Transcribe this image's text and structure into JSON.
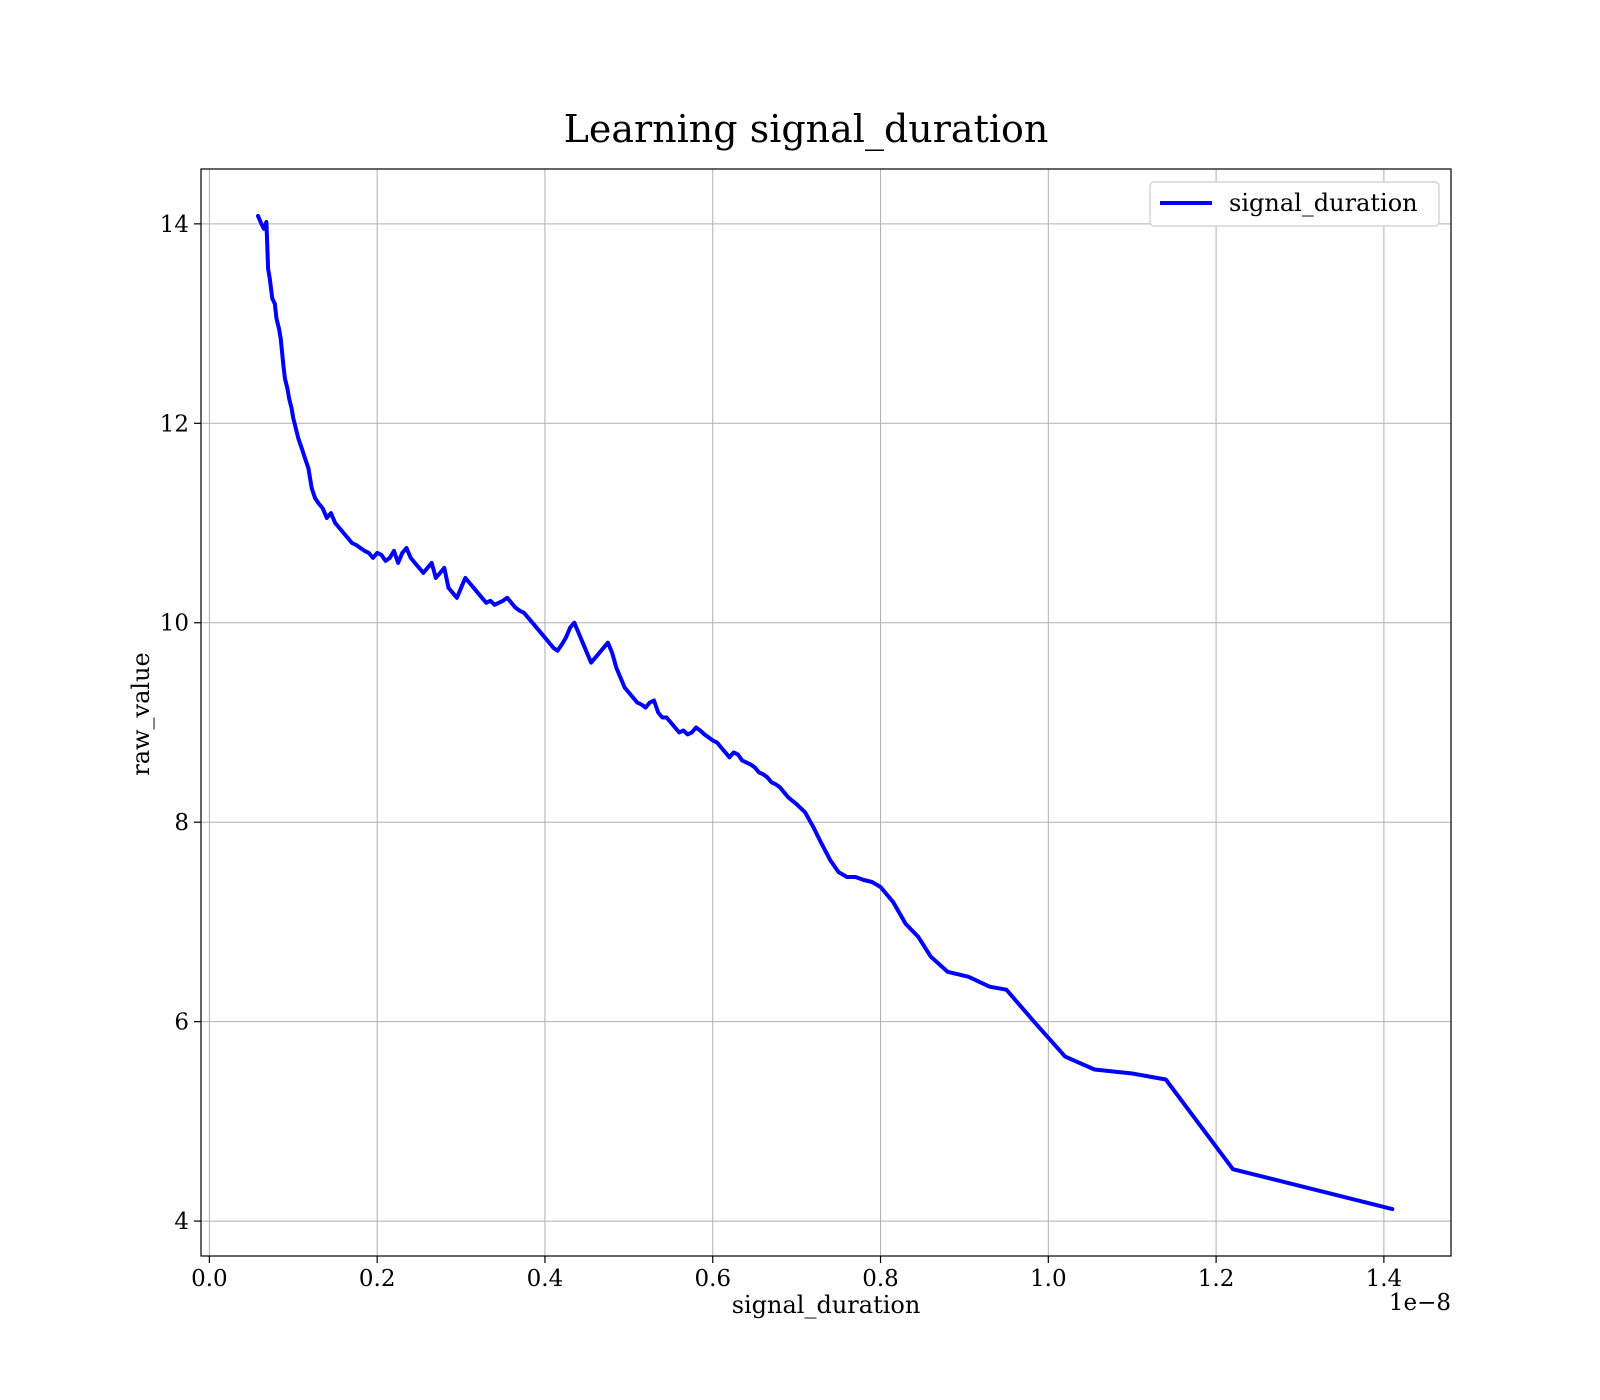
{
  "chart_data": {
    "type": "line",
    "title": "Learning signal_duration",
    "xlabel": "signal_duration",
    "ylabel": "raw_value",
    "x_offset_label": "1e−8",
    "xlim": [
      -0.01,
      1.48
    ],
    "ylim": [
      3.65,
      14.55
    ],
    "x_ticks": [
      0.0,
      0.2,
      0.4,
      0.6,
      0.8,
      1.0,
      1.2,
      1.4
    ],
    "x_tick_labels": [
      "0.0",
      "0.2",
      "0.4",
      "0.6",
      "0.8",
      "1.0",
      "1.2",
      "1.4"
    ],
    "y_ticks": [
      4,
      6,
      8,
      10,
      12,
      14
    ],
    "y_tick_labels": [
      "4",
      "6",
      "8",
      "10",
      "12",
      "14"
    ],
    "grid": true,
    "legend": {
      "position": "top-right",
      "entries": [
        "signal_duration"
      ]
    },
    "series": [
      {
        "name": "signal_duration",
        "color": "#0000ff",
        "x": [
          0.058,
          0.062,
          0.065,
          0.068,
          0.07,
          0.072,
          0.075,
          0.078,
          0.08,
          0.083,
          0.085,
          0.088,
          0.09,
          0.093,
          0.095,
          0.098,
          0.1,
          0.103,
          0.106,
          0.11,
          0.114,
          0.118,
          0.122,
          0.126,
          0.13,
          0.135,
          0.14,
          0.145,
          0.15,
          0.155,
          0.16,
          0.165,
          0.17,
          0.175,
          0.18,
          0.185,
          0.19,
          0.195,
          0.2,
          0.205,
          0.21,
          0.215,
          0.22,
          0.225,
          0.23,
          0.235,
          0.24,
          0.245,
          0.25,
          0.255,
          0.26,
          0.265,
          0.27,
          0.275,
          0.28,
          0.285,
          0.29,
          0.295,
          0.3,
          0.305,
          0.31,
          0.315,
          0.32,
          0.325,
          0.33,
          0.335,
          0.34,
          0.345,
          0.35,
          0.355,
          0.36,
          0.365,
          0.37,
          0.375,
          0.38,
          0.385,
          0.39,
          0.395,
          0.4,
          0.405,
          0.41,
          0.415,
          0.42,
          0.425,
          0.43,
          0.435,
          0.44,
          0.445,
          0.45,
          0.455,
          0.46,
          0.465,
          0.47,
          0.475,
          0.48,
          0.485,
          0.49,
          0.495,
          0.5,
          0.505,
          0.51,
          0.515,
          0.52,
          0.525,
          0.53,
          0.535,
          0.54,
          0.545,
          0.55,
          0.555,
          0.56,
          0.565,
          0.57,
          0.575,
          0.58,
          0.585,
          0.59,
          0.595,
          0.6,
          0.605,
          0.61,
          0.615,
          0.62,
          0.625,
          0.63,
          0.635,
          0.64,
          0.645,
          0.65,
          0.655,
          0.66,
          0.665,
          0.67,
          0.675,
          0.68,
          0.69,
          0.7,
          0.71,
          0.72,
          0.73,
          0.74,
          0.75,
          0.76,
          0.77,
          0.78,
          0.79,
          0.8,
          0.815,
          0.83,
          0.845,
          0.86,
          0.88,
          0.905,
          0.93,
          0.95,
          0.985,
          1.02,
          1.055,
          1.1,
          1.14,
          1.22,
          1.41
        ],
        "y": [
          14.08,
          14.0,
          13.95,
          14.02,
          13.55,
          13.45,
          13.25,
          13.2,
          13.05,
          12.95,
          12.85,
          12.6,
          12.45,
          12.35,
          12.25,
          12.15,
          12.05,
          11.95,
          11.85,
          11.75,
          11.65,
          11.55,
          11.35,
          11.25,
          11.2,
          11.15,
          11.05,
          11.1,
          11.0,
          10.95,
          10.9,
          10.85,
          10.8,
          10.78,
          10.75,
          10.72,
          10.7,
          10.65,
          10.7,
          10.68,
          10.62,
          10.65,
          10.72,
          10.6,
          10.7,
          10.75,
          10.65,
          10.6,
          10.55,
          10.5,
          10.55,
          10.6,
          10.45,
          10.5,
          10.55,
          10.35,
          10.3,
          10.25,
          10.35,
          10.45,
          10.4,
          10.35,
          10.3,
          10.25,
          10.2,
          10.22,
          10.18,
          10.2,
          10.22,
          10.25,
          10.2,
          10.15,
          10.12,
          10.1,
          10.05,
          10.0,
          9.95,
          9.9,
          9.85,
          9.8,
          9.75,
          9.72,
          9.78,
          9.85,
          9.95,
          10.0,
          9.9,
          9.8,
          9.7,
          9.6,
          9.65,
          9.7,
          9.75,
          9.8,
          9.7,
          9.55,
          9.45,
          9.35,
          9.3,
          9.25,
          9.2,
          9.18,
          9.15,
          9.2,
          9.22,
          9.1,
          9.05,
          9.05,
          9.0,
          8.95,
          8.9,
          8.92,
          8.88,
          8.9,
          8.95,
          8.92,
          8.88,
          8.85,
          8.82,
          8.8,
          8.75,
          8.7,
          8.65,
          8.7,
          8.68,
          8.62,
          8.6,
          8.58,
          8.55,
          8.5,
          8.48,
          8.45,
          8.4,
          8.38,
          8.35,
          8.25,
          8.18,
          8.1,
          7.95,
          7.78,
          7.62,
          7.5,
          7.45,
          7.45,
          7.42,
          7.4,
          7.35,
          7.2,
          6.98,
          6.85,
          6.65,
          6.5,
          6.45,
          6.35,
          6.32,
          5.98,
          5.65,
          5.52,
          5.48,
          5.42,
          4.52,
          4.12
        ]
      }
    ]
  }
}
